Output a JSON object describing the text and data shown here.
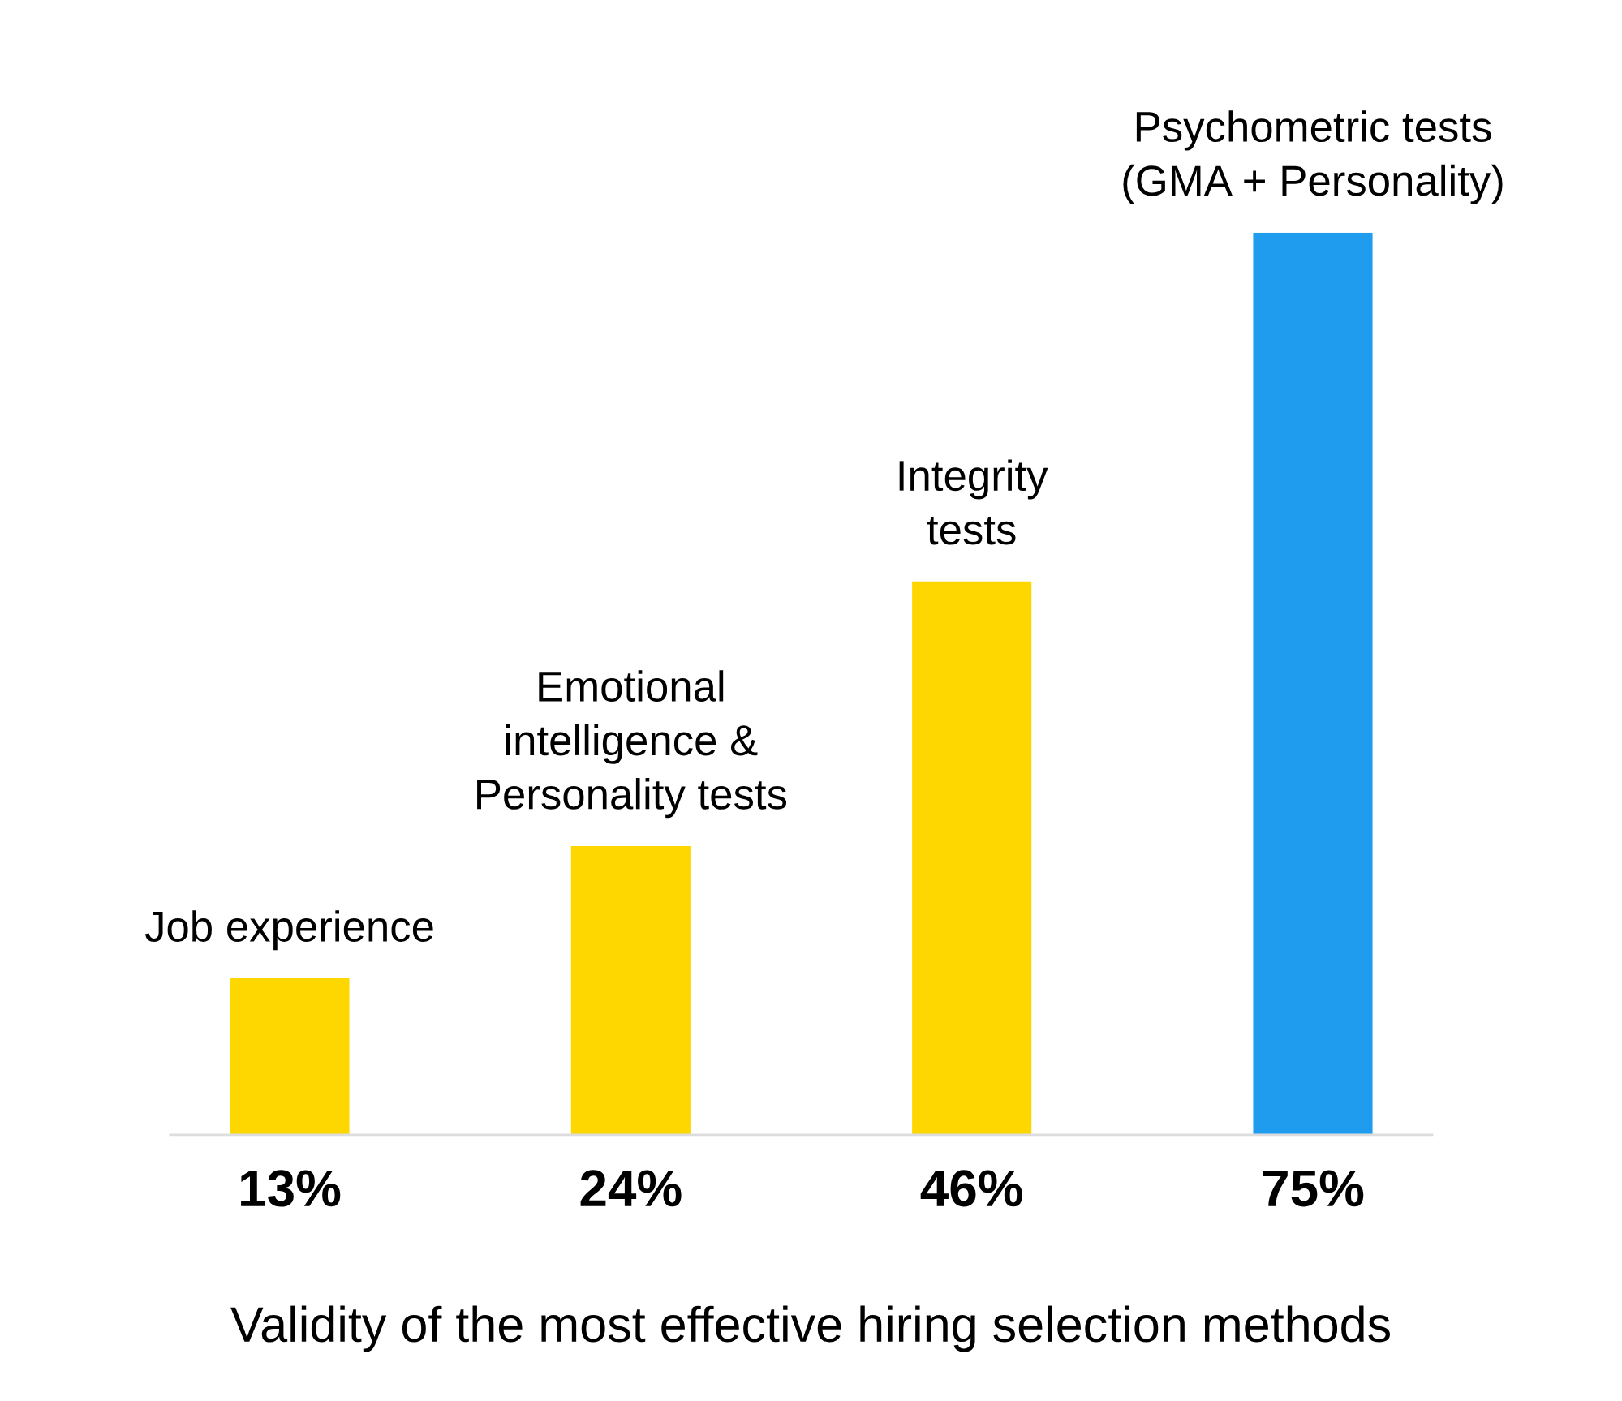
{
  "chart_data": {
    "type": "bar",
    "title": "Validity of the most effective hiring selection methods",
    "categories": [
      "Job experience",
      "Emotional\nintelligence &\nPersonality tests",
      "Integrity\ntests",
      "Psychometric tests\n(GMA + Personality)"
    ],
    "values": [
      13,
      24,
      46,
      75
    ],
    "colors": [
      "#ffd700",
      "#ffd700",
      "#ffd700",
      "#209cee"
    ],
    "value_labels": [
      "13%",
      "24%",
      "46%",
      "75%"
    ]
  }
}
